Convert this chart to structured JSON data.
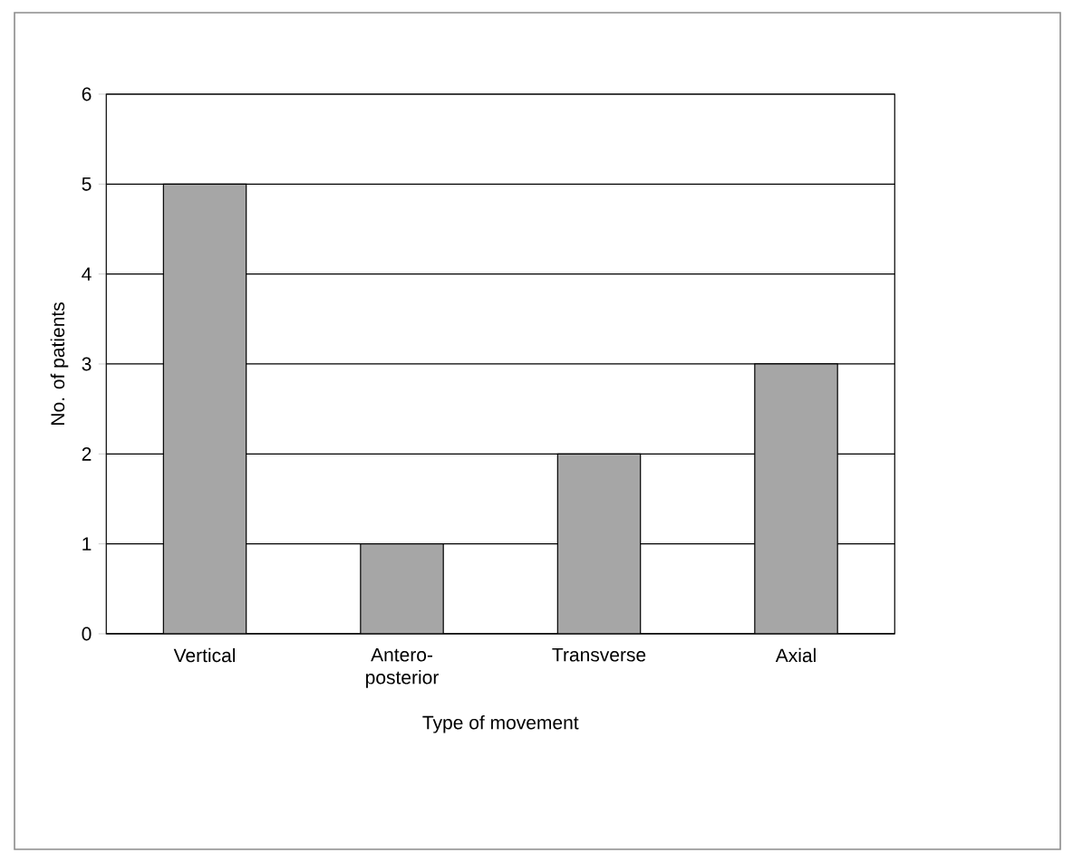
{
  "chart_data": {
    "type": "bar",
    "xlabel": "Type of movement",
    "ylabel": "No. of patients",
    "categories": [
      "Vertical",
      "Antero-posterior",
      "Transverse",
      "Axial"
    ],
    "values": [
      5,
      1,
      2,
      3
    ],
    "color": "#a6a6a6",
    "ylim": [
      0,
      6
    ],
    "yticks": [
      0,
      1,
      2,
      3,
      4,
      5,
      6
    ],
    "grid": "y"
  }
}
